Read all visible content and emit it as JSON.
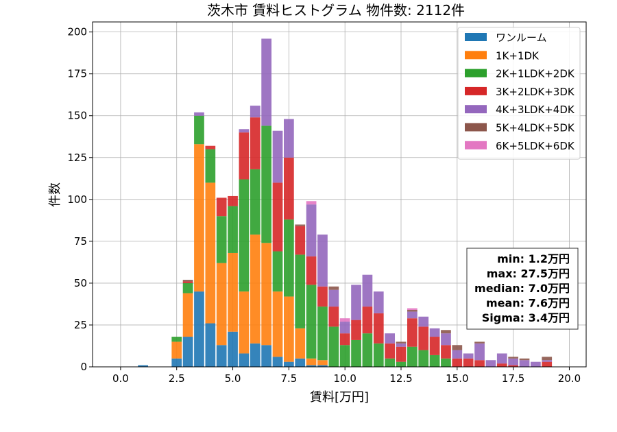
{
  "colors": {
    "ワンルーム": "#1f77b4",
    "1K+1DK": "#ff7f0e",
    "2K+1LDK+2DK": "#2ca02c",
    "3K+2LDK+3DK": "#d62728",
    "4K+3LDK+4DK": "#9467bd",
    "5K+4LDK+5DK": "#8c564b",
    "6K+5LDK+6DK": "#e377c2"
  },
  "chart_data": {
    "type": "bar",
    "stacked": true,
    "title": "茨木市 賃料ヒストグラム  物件数: 2112件",
    "xlabel": "賃料[万円]",
    "ylabel": "件数",
    "xlim": [
      -1.25,
      20.75
    ],
    "ylim": [
      0,
      206
    ],
    "xticks": [
      "0.0",
      "2.5",
      "5.0",
      "7.5",
      "10.0",
      "12.5",
      "15.0",
      "17.5",
      "20.0"
    ],
    "yticks": [
      "0",
      "25",
      "50",
      "75",
      "100",
      "125",
      "150",
      "175",
      "200"
    ],
    "grid": true,
    "legend_position": "top-right",
    "bin_width": 0.5,
    "x": [
      1.0,
      2.5,
      3.0,
      3.5,
      4.0,
      4.5,
      5.0,
      5.5,
      6.0,
      6.5,
      7.0,
      7.5,
      8.0,
      8.5,
      9.0,
      9.5,
      10.0,
      10.5,
      11.0,
      11.5,
      12.0,
      12.5,
      13.0,
      13.5,
      14.0,
      14.5,
      15.0,
      15.5,
      16.0,
      16.5,
      17.0,
      17.5,
      18.0,
      18.5,
      19.0
    ],
    "series": [
      {
        "name": "ワンルーム",
        "values": [
          1,
          5,
          18,
          45,
          26,
          13,
          21,
          8,
          14,
          13,
          6,
          3,
          5,
          1,
          1,
          0,
          0,
          0,
          0,
          0,
          0,
          0,
          0,
          0,
          0,
          0,
          0,
          0,
          0,
          0,
          0,
          0,
          0,
          0,
          0
        ]
      },
      {
        "name": "1K+1DK",
        "values": [
          0,
          10,
          26,
          88,
          84,
          49,
          47,
          37,
          65,
          61,
          39,
          39,
          18,
          4,
          3,
          0,
          0,
          0,
          0,
          0,
          0,
          0,
          0,
          0,
          0,
          0,
          0,
          0,
          0,
          0,
          0,
          0,
          0,
          0,
          0
        ]
      },
      {
        "name": "2K+1LDK+2DK",
        "values": [
          0,
          3,
          6,
          17,
          20,
          28,
          28,
          67,
          39,
          70,
          24,
          46,
          44,
          44,
          32,
          24,
          13,
          16,
          20,
          14,
          5,
          3,
          12,
          10,
          7,
          5,
          0,
          0,
          0,
          0,
          0,
          0,
          0,
          0,
          0
        ]
      },
      {
        "name": "3K+2LDK+3DK",
        "values": [
          0,
          0,
          1,
          0,
          2,
          11,
          6,
          28,
          31,
          0,
          41,
          37,
          17,
          17,
          12,
          12,
          7,
          12,
          16,
          18,
          9,
          9,
          17,
          14,
          11,
          8,
          5,
          5,
          4,
          0,
          2,
          1,
          0,
          0,
          3
        ]
      },
      {
        "name": "4K+3LDK+4DK",
        "values": [
          0,
          0,
          0,
          2,
          0,
          0,
          0,
          2,
          7,
          52,
          31,
          23,
          0,
          31,
          31,
          10,
          7,
          21,
          19,
          13,
          6,
          2,
          4,
          6,
          5,
          7,
          5,
          3,
          10,
          4,
          6,
          4,
          4,
          3,
          1
        ]
      },
      {
        "name": "5K+4LDK+5DK",
        "values": [
          0,
          0,
          1,
          0,
          0,
          0,
          0,
          0,
          0,
          0,
          0,
          0,
          1,
          0,
          0,
          2,
          0,
          0,
          0,
          0,
          0,
          1,
          1,
          0,
          0,
          2,
          3,
          0,
          1,
          0,
          0,
          1,
          1,
          0,
          2
        ]
      },
      {
        "name": "6K+5LDK+6DK",
        "values": [
          0,
          0,
          0,
          0,
          0,
          0,
          0,
          0,
          0,
          0,
          0,
          0,
          0,
          2,
          0,
          0,
          2,
          0,
          0,
          0,
          0,
          0,
          1,
          0,
          0,
          0,
          0,
          0,
          0,
          0,
          0,
          0,
          0,
          0,
          0
        ]
      }
    ],
    "stats": [
      "min: 1.2万円",
      "max: 27.5万円",
      "median: 7.0万円",
      "mean: 7.6万円",
      "Sigma: 3.4万円"
    ]
  }
}
